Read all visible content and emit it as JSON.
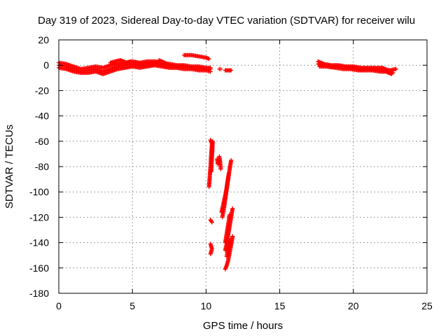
{
  "chart_data": {
    "type": "scatter",
    "title": "Day 319 of 2023, Sidereal Day-to-day VTEC variation (SDTVAR) for receiver wilu",
    "xlabel": "GPS time / hours",
    "ylabel": "SDTVAR / TECUs",
    "xlim": [
      0,
      25
    ],
    "ylim": [
      -180,
      20
    ],
    "xticks": [
      0,
      5,
      10,
      15,
      20,
      25
    ],
    "yticks": [
      20,
      0,
      -20,
      -40,
      -60,
      -80,
      -100,
      -120,
      -140,
      -160,
      -180
    ],
    "grid": true,
    "marker": "+",
    "color": "#ff0000",
    "series": [
      {
        "name": "SDTVAR",
        "segments": [
          [
            [
              0.0,
              0
            ],
            [
              0.5,
              -1
            ],
            [
              1.0,
              -3
            ],
            [
              1.5,
              -5
            ],
            [
              2.0,
              -4
            ],
            [
              2.5,
              -3
            ],
            [
              3.0,
              -5
            ],
            [
              3.5,
              -3
            ],
            [
              4.0,
              -1
            ],
            [
              4.5,
              0
            ],
            [
              5.0,
              1
            ],
            [
              5.5,
              0
            ],
            [
              6.0,
              1
            ],
            [
              6.5,
              2
            ],
            [
              7.0,
              1
            ],
            [
              7.5,
              0
            ],
            [
              8.0,
              -1
            ],
            [
              8.5,
              -1
            ],
            [
              9.0,
              -2
            ],
            [
              9.5,
              -2
            ],
            [
              10.0,
              -3
            ],
            [
              10.3,
              -3
            ]
          ],
          [
            [
              0.0,
              2
            ],
            [
              0.5,
              1
            ],
            [
              1.0,
              -1
            ],
            [
              1.5,
              -3
            ],
            [
              2.0,
              -2
            ],
            [
              2.5,
              -1
            ],
            [
              3.0,
              -2
            ],
            [
              3.5,
              0
            ],
            [
              4.0,
              1
            ],
            [
              4.5,
              2
            ],
            [
              5.0,
              3
            ],
            [
              5.5,
              2
            ],
            [
              6.0,
              3
            ],
            [
              6.5,
              3
            ],
            [
              7.0,
              2
            ],
            [
              7.5,
              1
            ],
            [
              8.0,
              0
            ],
            [
              8.5,
              0
            ],
            [
              9.0,
              -1
            ],
            [
              9.5,
              -1
            ],
            [
              10.0,
              -2
            ],
            [
              10.3,
              -2
            ]
          ],
          [
            [
              0.0,
              -2
            ],
            [
              0.5,
              -3
            ],
            [
              1.0,
              -5
            ],
            [
              1.5,
              -6
            ],
            [
              2.0,
              -6
            ],
            [
              2.5,
              -5
            ],
            [
              3.0,
              -7
            ],
            [
              3.5,
              -5
            ],
            [
              4.0,
              -3
            ],
            [
              4.5,
              -2
            ],
            [
              5.0,
              -1
            ],
            [
              5.5,
              -2
            ],
            [
              6.0,
              -1
            ],
            [
              6.5,
              0
            ],
            [
              7.0,
              -1
            ],
            [
              7.5,
              -2
            ],
            [
              8.0,
              -2
            ],
            [
              8.5,
              -3
            ],
            [
              9.0,
              -3
            ],
            [
              9.5,
              -4
            ],
            [
              10.0,
              -4
            ],
            [
              10.3,
              -5
            ]
          ],
          [
            [
              3.5,
              2
            ],
            [
              3.8,
              3
            ],
            [
              4.2,
              4
            ],
            [
              4.6,
              2
            ],
            [
              4.9,
              3
            ]
          ],
          [
            [
              6.8,
              4
            ],
            [
              7.0,
              3
            ],
            [
              7.2,
              2
            ]
          ],
          [
            [
              8.5,
              8
            ],
            [
              9.0,
              8
            ],
            [
              9.5,
              7
            ],
            [
              10.0,
              6
            ],
            [
              10.2,
              5
            ]
          ],
          [
            [
              11.3,
              -4
            ],
            [
              11.5,
              -4
            ],
            [
              11.7,
              -4
            ]
          ],
          [
            [
              10.9,
              -3
            ],
            [
              11.0,
              -3
            ]
          ],
          [
            [
              17.6,
              1
            ],
            [
              18.0,
              0
            ],
            [
              18.5,
              -1
            ],
            [
              19.0,
              -1
            ],
            [
              19.5,
              -2
            ],
            [
              20.0,
              -2
            ],
            [
              20.5,
              -3
            ],
            [
              21.0,
              -3
            ],
            [
              21.5,
              -3
            ],
            [
              22.0,
              -3
            ],
            [
              22.5,
              -4
            ],
            [
              22.9,
              -3
            ]
          ],
          [
            [
              17.6,
              3
            ],
            [
              18.0,
              1
            ],
            [
              18.5,
              0
            ],
            [
              19.0,
              0
            ],
            [
              19.5,
              -1
            ],
            [
              20.0,
              -1
            ],
            [
              20.5,
              -2
            ],
            [
              21.0,
              -2
            ],
            [
              21.5,
              -2
            ],
            [
              22.0,
              -2
            ],
            [
              22.4,
              -5
            ],
            [
              22.7,
              -6
            ]
          ],
          [
            [
              17.7,
              -1
            ],
            [
              18.2,
              -1
            ],
            [
              18.8,
              -2
            ],
            [
              19.3,
              -3
            ],
            [
              19.8,
              -3
            ],
            [
              20.3,
              -4
            ],
            [
              20.8,
              -4
            ],
            [
              21.3,
              -4
            ],
            [
              21.8,
              -5
            ],
            [
              22.2,
              -5
            ],
            [
              22.6,
              -7
            ]
          ],
          [
            [
              10.3,
              -59
            ],
            [
              10.4,
              -62
            ],
            [
              10.35,
              -70
            ],
            [
              10.3,
              -80
            ],
            [
              10.25,
              -88
            ],
            [
              10.2,
              -96
            ]
          ],
          [
            [
              10.45,
              -60
            ],
            [
              10.42,
              -68
            ],
            [
              10.38,
              -76
            ],
            [
              10.35,
              -84
            ]
          ],
          [
            [
              10.9,
              -72
            ],
            [
              10.95,
              -76
            ],
            [
              11.0,
              -82
            ]
          ],
          [
            [
              10.75,
              -74
            ],
            [
              10.8,
              -78
            ]
          ],
          [
            [
              11.7,
              -75
            ],
            [
              11.6,
              -82
            ],
            [
              11.5,
              -90
            ],
            [
              11.4,
              -98
            ],
            [
              11.3,
              -106
            ],
            [
              11.2,
              -114
            ],
            [
              11.1,
              -120
            ]
          ],
          [
            [
              11.55,
              -85
            ],
            [
              11.45,
              -92
            ],
            [
              11.35,
              -100
            ],
            [
              11.2,
              -108
            ],
            [
              11.05,
              -116
            ]
          ],
          [
            [
              10.3,
              -122
            ],
            [
              10.4,
              -124
            ]
          ],
          [
            [
              11.8,
              -113
            ],
            [
              11.7,
              -120
            ],
            [
              11.6,
              -127
            ],
            [
              11.5,
              -134
            ],
            [
              11.4,
              -141
            ],
            [
              11.3,
              -146
            ]
          ],
          [
            [
              11.6,
              -118
            ],
            [
              11.5,
              -126
            ],
            [
              11.4,
              -133
            ],
            [
              11.3,
              -140
            ]
          ],
          [
            [
              10.3,
              -141
            ],
            [
              10.4,
              -145
            ],
            [
              10.3,
              -149
            ]
          ],
          [
            [
              11.8,
              -135
            ],
            [
              11.7,
              -142
            ],
            [
              11.6,
              -148
            ],
            [
              11.5,
              -154
            ],
            [
              11.4,
              -158
            ],
            [
              11.3,
              -161
            ]
          ],
          [
            [
              11.6,
              -138
            ],
            [
              11.5,
              -145
            ],
            [
              11.4,
              -151
            ]
          ]
        ]
      }
    ]
  }
}
